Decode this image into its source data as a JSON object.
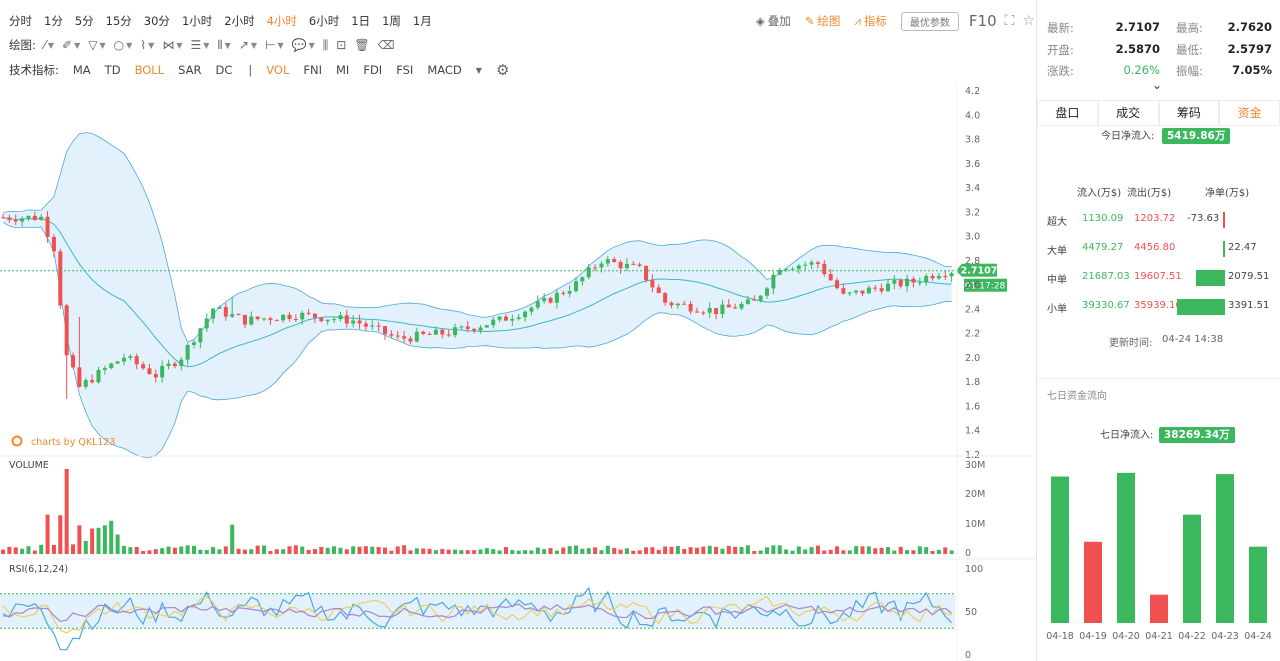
{
  "toolbar": {
    "timeframes": [
      "分时",
      "1分",
      "5分",
      "15分",
      "30分",
      "1小时",
      "2小时",
      "4小时",
      "6小时",
      "1日",
      "1周",
      "1月"
    ],
    "active_timeframe": "4小时",
    "overlay_label": "叠加",
    "draw_label": "绘图",
    "indicator_label": "指标",
    "optimal_params_label": "最优参数",
    "f10_label": "F10",
    "draw_prefix": "绘图:",
    "indicator_prefix": "技术指标:",
    "indicators": [
      "MA",
      "TD",
      "BOLL",
      "SAR",
      "DC"
    ],
    "sub_indicators": [
      "VOL",
      "FNI",
      "MI",
      "FDI",
      "FSI",
      "MACD"
    ],
    "active_indicators": [
      "BOLL",
      "VOL"
    ]
  },
  "chart": {
    "watermark": "charts by QKL123",
    "price_label": "2.7107",
    "countdown_label": "01:17:28",
    "volume_title": "VOLUME",
    "rsi_title": "RSI(6,12,24)",
    "price_axis": [
      "4.2",
      "4.0",
      "3.8",
      "3.6",
      "3.4",
      "3.2",
      "3.0",
      "2.8",
      "2.6",
      "2.4",
      "2.2",
      "2.0",
      "1.8",
      "1.6",
      "1.4",
      "1.2"
    ],
    "volume_axis": [
      "30M",
      "20M",
      "10M",
      "0"
    ],
    "rsi_axis": [
      "100",
      "50",
      "0"
    ],
    "colors": {
      "up": "#3bb75e",
      "down": "#f05050",
      "band": "#4aa8e0",
      "band_fill": "#e3f1fc",
      "rsi6": "#4aa8e0",
      "rsi12": "#e8d060",
      "rsi24": "#a784d4"
    }
  },
  "quote": {
    "latest_label": "最新:",
    "latest": "2.7107",
    "high_label": "最高:",
    "high": "2.7620",
    "open_label": "开盘:",
    "open": "2.5870",
    "low_label": "最低:",
    "low": "2.5797",
    "change_label": "涨跌:",
    "change": "0.26%",
    "amplitude_label": "振幅:",
    "amplitude": "7.05%"
  },
  "tabs": [
    "盘口",
    "成交",
    "筹码",
    "资金"
  ],
  "active_tab": "资金",
  "fund": {
    "today_net_label": "今日净流入:",
    "today_net": "5419.86万",
    "headers": {
      "in": "流入(万$)",
      "out": "流出(万$)",
      "net": "净单(万$)"
    },
    "rows": [
      {
        "label": "超大",
        "in": "1130.09",
        "out": "1203.72",
        "net": "-73.63",
        "net_value": -73.63
      },
      {
        "label": "大单",
        "in": "4479.27",
        "out": "4456.80",
        "net": "22.47",
        "net_value": 22.47
      },
      {
        "label": "中单",
        "in": "21687.03",
        "out": "19607.51",
        "net": "2079.51",
        "net_value": 2079.51
      },
      {
        "label": "小单",
        "in": "39330.67",
        "out": "35939.16",
        "net": "3391.51",
        "net_value": 3391.51
      }
    ],
    "update_label": "更新时间:",
    "update_time": "04-24 14:38"
  },
  "seven_day": {
    "title": "七日资金流向",
    "net_label": "七日净流入:",
    "net_value": "38269.34万",
    "chart_data": {
      "type": "bar",
      "categories": [
        "04-18",
        "04-19",
        "04-20",
        "04-21",
        "04-22",
        "04-23",
        "04-24"
      ],
      "values": [
        5950,
        3300,
        6100,
        1150,
        4400,
        6050,
        3100
      ],
      "colors": [
        "#3bb75e",
        "#f05050",
        "#3bb75e",
        "#f05050",
        "#3bb75e",
        "#3bb75e",
        "#3bb75e"
      ]
    }
  }
}
